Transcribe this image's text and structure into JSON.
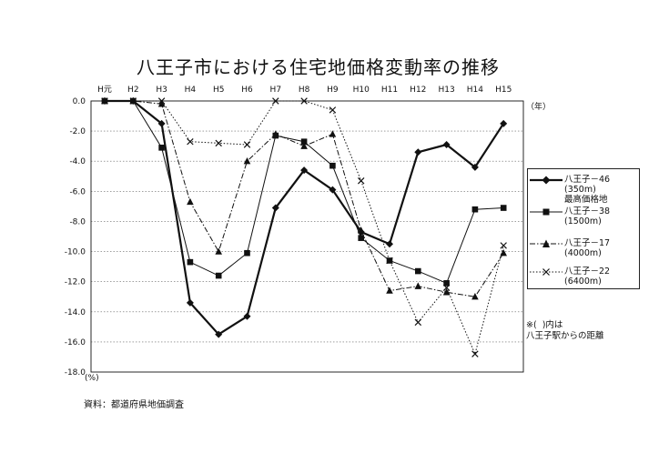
{
  "title": "八王子市における住宅地価格変動率の推移",
  "source": "資料：都道府県地価調査",
  "y_unit": "(%)",
  "x_unit": "（年）",
  "note": "※(  )内は\n八王子駅からの距離",
  "chart_data": {
    "type": "line",
    "categories": [
      "H元",
      "H2",
      "H3",
      "H4",
      "H5",
      "H6",
      "H7",
      "H8",
      "H9",
      "H10",
      "H11",
      "H12",
      "H13",
      "H14",
      "H15"
    ],
    "ylim": [
      -18.0,
      0.0
    ],
    "y_ticks": [
      "0.0",
      "-2.0",
      "-4.0",
      "-6.0",
      "-8.0",
      "-10.0",
      "-12.0",
      "-14.0",
      "-16.0",
      "-18.0"
    ],
    "grid": true,
    "legend_position": "right",
    "series": [
      {
        "name": "八王子－46\n(350m)\n最高価格地",
        "marker": "diamond",
        "style": "solid-thick",
        "values": [
          0.0,
          0.0,
          -1.5,
          -13.4,
          -15.5,
          -14.3,
          -7.1,
          -4.6,
          -5.9,
          -8.7,
          -9.5,
          -3.4,
          -2.9,
          -4.4,
          -1.5
        ]
      },
      {
        "name": "八王子－38\n(1500m)",
        "marker": "square",
        "style": "solid-thin",
        "values": [
          0.0,
          0.0,
          -3.1,
          -10.7,
          -11.6,
          -10.1,
          -2.3,
          -2.7,
          -4.3,
          -9.1,
          -10.6,
          -11.3,
          -12.1,
          -7.2,
          -7.1
        ]
      },
      {
        "name": "八王子－17\n(4000m)",
        "marker": "triangle",
        "style": "dash-dot",
        "values": [
          0.0,
          0.0,
          -0.2,
          -6.7,
          -10.0,
          -4.0,
          -2.2,
          -3.0,
          -2.2,
          -8.6,
          -12.6,
          -12.3,
          -12.7,
          -13.0,
          -10.1
        ]
      },
      {
        "name": "八王子－22\n(6400m)",
        "marker": "x",
        "style": "dotted",
        "values": [
          0.0,
          0.0,
          0.0,
          -2.7,
          -2.8,
          -2.9,
          0.0,
          0.0,
          -0.6,
          -5.3,
          -10.6,
          -14.7,
          -12.4,
          -16.8,
          -9.6
        ]
      }
    ]
  }
}
